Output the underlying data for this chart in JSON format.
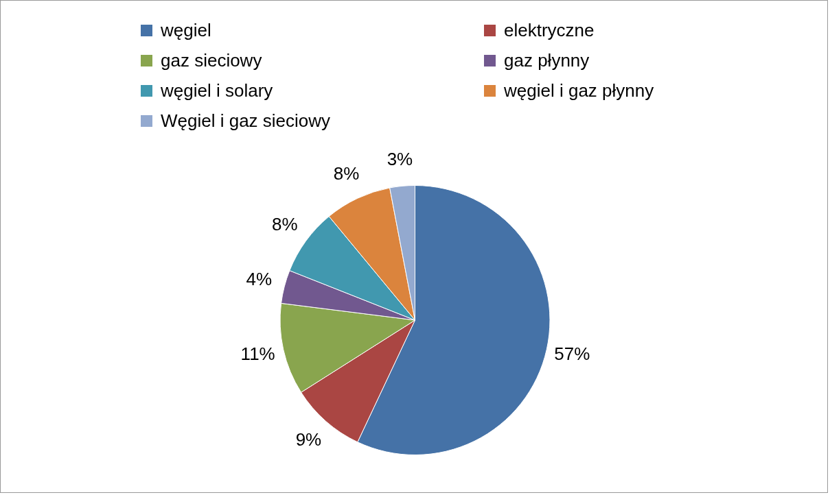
{
  "chart_data": {
    "type": "pie",
    "categories": [
      "węgiel",
      "elektryczne",
      "gaz sieciowy",
      "gaz płynny",
      "węgiel i solary",
      "węgiel i gaz płynny",
      "Węgiel i gaz sieciowy"
    ],
    "values": [
      57,
      9,
      11,
      4,
      8,
      8,
      3
    ],
    "colors": [
      "#4572a7",
      "#aa4643",
      "#89a54e",
      "#71588f",
      "#4198af",
      "#db843d",
      "#93a9cf"
    ],
    "value_labels": [
      "57%",
      "9%",
      "11%",
      "4%",
      "8%",
      "8%",
      "3%"
    ],
    "legend": "top"
  }
}
